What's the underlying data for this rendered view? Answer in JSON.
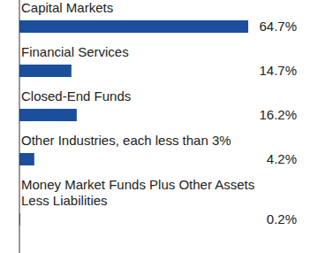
{
  "chart_data": {
    "type": "bar",
    "orientation": "horizontal",
    "categories": [
      "Capital Markets",
      "Financial Services",
      "Closed-End Funds",
      "Other Industries, each less than 3%",
      "Money Market Funds Plus Other Assets Less Liabilities"
    ],
    "values": [
      64.7,
      14.7,
      16.2,
      4.2,
      0.2
    ],
    "value_labels": [
      "64.7%",
      "14.7%",
      "16.2%",
      "4.2%",
      "0.2%"
    ],
    "color": "#1b4f9c",
    "data_labels": true,
    "tick_labels": false
  }
}
